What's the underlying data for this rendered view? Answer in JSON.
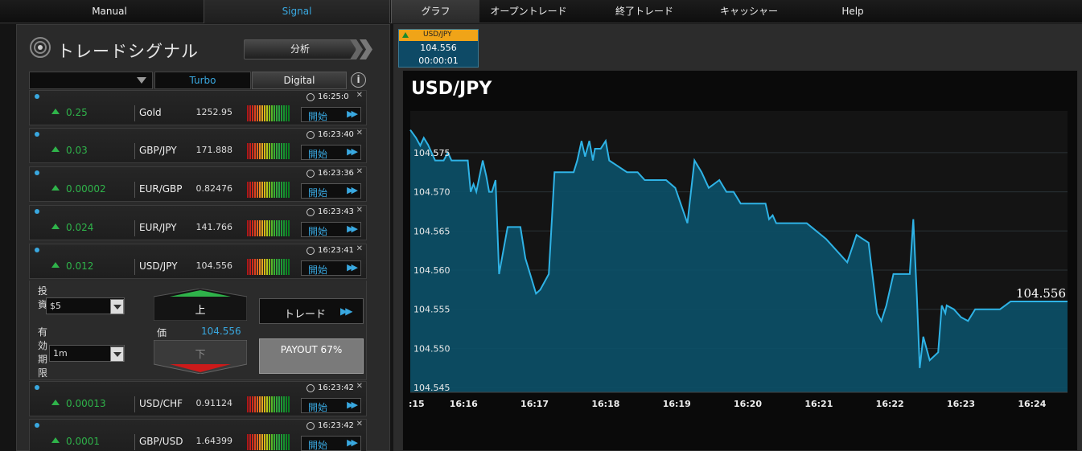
{
  "nav": {
    "tabs": [
      {
        "label": "Manual"
      },
      {
        "label": "Signal"
      },
      {
        "label": "グラフ"
      },
      {
        "label": "オープントレード"
      },
      {
        "label": "終了トレード"
      },
      {
        "label": "キャッシャー"
      },
      {
        "label": "Help"
      }
    ]
  },
  "signals_panel": {
    "title": "トレードシグナル",
    "analyze_label": "分析",
    "filter": {
      "selected": "",
      "turbo": "Turbo",
      "digital": "Digital",
      "info": "i"
    },
    "start_label": "開始",
    "items": [
      {
        "time": "16:25:0",
        "change": "0.25",
        "symbol": "Gold",
        "price": "1252.95"
      },
      {
        "time": "16:23:40",
        "change": "0.03",
        "symbol": "GBP/JPY",
        "price": "171.888"
      },
      {
        "time": "16:23:36",
        "change": "0.00002",
        "symbol": "EUR/GBP",
        "price": "0.82476"
      },
      {
        "time": "16:23:43",
        "change": "0.024",
        "symbol": "EUR/JPY",
        "price": "141.766"
      },
      {
        "time": "16:23:41",
        "change": "0.012",
        "symbol": "USD/JPY",
        "price": "104.556"
      },
      {
        "time": "16:23:42",
        "change": "0.00013",
        "symbol": "USD/CHF",
        "price": "0.91124"
      },
      {
        "time": "16:23:42",
        "change": "0.0001",
        "symbol": "GBP/USD",
        "price": "1.64399"
      }
    ],
    "expanded": {
      "invest_label": "投資",
      "invest_value": "$5",
      "expiry_label": "有効期限",
      "expiry_value": "1m",
      "up_label": "上",
      "down_label": "下",
      "price_label": "価",
      "price_value": "104.556",
      "trade_label": "トレード",
      "payout": "PAYOUT 67%"
    }
  },
  "mini_ticker": {
    "symbol": "USD/JPY",
    "price": "104.556",
    "timer": "00:00:01"
  },
  "colors": {
    "accent": "#39a8e0",
    "up": "#2fb34a",
    "down": "#cc1a1a",
    "chart_fill": "#0b5068",
    "chart_line": "#2fb3e6"
  },
  "chart_data": {
    "type": "area",
    "title": "USD/JPY",
    "last_value_label": "104.556",
    "ylim": [
      104.5444,
      104.5793
    ],
    "xlim": [
      15.25,
      24.5
    ],
    "y_ticks": [
      "104.575",
      "104.570",
      "104.565",
      "104.560",
      "104.555",
      "104.550",
      "104.545"
    ],
    "x_ticks": [
      ":15",
      "16:16",
      "16:17",
      "16:18",
      "16:19",
      "16:20",
      "16:21",
      "16:22",
      "16:23",
      "16:24"
    ],
    "x_tick_minutes": [
      15.15,
      16,
      17,
      18,
      19,
      20,
      21,
      22,
      23,
      24
    ],
    "series": [
      {
        "points": [
          [
            15.25,
            104.5779
          ],
          [
            15.33,
            104.5769
          ],
          [
            15.39,
            104.5759
          ],
          [
            15.44,
            104.5769
          ],
          [
            15.5,
            104.576
          ],
          [
            15.55,
            104.575
          ],
          [
            15.6,
            104.574
          ],
          [
            15.72,
            104.574
          ],
          [
            15.78,
            104.575
          ],
          [
            15.83,
            104.574
          ],
          [
            16.06,
            104.574
          ],
          [
            16.1,
            104.57
          ],
          [
            16.14,
            104.571
          ],
          [
            16.18,
            104.57
          ],
          [
            16.27,
            104.574
          ],
          [
            16.32,
            104.572
          ],
          [
            16.36,
            104.57
          ],
          [
            16.4,
            104.57
          ],
          [
            16.45,
            104.5715
          ],
          [
            16.5,
            104.5595
          ],
          [
            16.56,
            104.5625
          ],
          [
            16.62,
            104.5655
          ],
          [
            16.8,
            104.5655
          ],
          [
            16.87,
            104.5615
          ],
          [
            17.02,
            104.557
          ],
          [
            17.08,
            104.5575
          ],
          [
            17.2,
            104.5595
          ],
          [
            17.28,
            104.5725
          ],
          [
            17.55,
            104.5725
          ],
          [
            17.6,
            104.574
          ],
          [
            17.66,
            104.5765
          ],
          [
            17.71,
            104.5745
          ],
          [
            17.77,
            104.5765
          ],
          [
            17.82,
            104.574
          ],
          [
            17.85,
            104.5755
          ],
          [
            17.93,
            104.5755
          ],
          [
            18.0,
            104.5765
          ],
          [
            18.05,
            104.574
          ],
          [
            18.3,
            104.5725
          ],
          [
            18.45,
            104.5725
          ],
          [
            18.55,
            104.5715
          ],
          [
            18.85,
            104.5715
          ],
          [
            18.98,
            104.5705
          ],
          [
            19.15,
            104.566
          ],
          [
            19.25,
            104.574
          ],
          [
            19.35,
            104.5725
          ],
          [
            19.45,
            104.5705
          ],
          [
            19.6,
            104.5715
          ],
          [
            19.7,
            104.57
          ],
          [
            19.8,
            104.57
          ],
          [
            19.9,
            104.5685
          ],
          [
            20.25,
            104.5685
          ],
          [
            20.3,
            104.5665
          ],
          [
            20.35,
            104.567
          ],
          [
            20.4,
            104.566
          ],
          [
            20.83,
            104.566
          ],
          [
            21.1,
            104.564
          ],
          [
            21.4,
            104.561
          ],
          [
            21.53,
            104.5645
          ],
          [
            21.7,
            104.5635
          ],
          [
            21.82,
            104.5545
          ],
          [
            21.88,
            104.5535
          ],
          [
            21.95,
            104.5555
          ],
          [
            22.05,
            104.5595
          ],
          [
            22.28,
            104.5595
          ],
          [
            22.33,
            104.5665
          ],
          [
            22.38,
            104.5565
          ],
          [
            22.42,
            104.5475
          ],
          [
            22.47,
            104.5515
          ],
          [
            22.56,
            104.5485
          ],
          [
            22.68,
            104.5495
          ],
          [
            22.73,
            104.5555
          ],
          [
            22.78,
            104.5545
          ],
          [
            22.8,
            104.5555
          ],
          [
            22.9,
            104.555
          ],
          [
            23.0,
            104.554
          ],
          [
            23.1,
            104.5535
          ],
          [
            23.2,
            104.555
          ],
          [
            23.55,
            104.555
          ],
          [
            23.7,
            104.556
          ],
          [
            24.5,
            104.556
          ]
        ]
      }
    ]
  }
}
